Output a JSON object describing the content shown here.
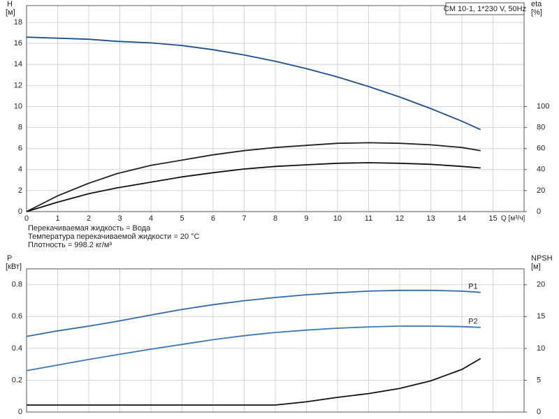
{
  "chart_data": [
    {
      "type": "line",
      "title": "CM 10-1, 1*230 V, 50Hz",
      "y_label": "H",
      "y_unit": "[м]",
      "y2_label": "eta",
      "y2_unit": "[%]",
      "x_label": "Q [м³/ч]",
      "x": [
        0,
        1,
        2,
        2.9,
        4,
        5,
        6,
        7,
        8,
        9,
        10,
        11,
        12,
        13,
        14,
        14.6
      ],
      "xlim": [
        0,
        16
      ],
      "xticks": [
        0,
        1,
        2,
        3,
        4,
        5,
        6,
        7,
        8,
        9,
        10,
        11,
        12,
        13,
        14,
        15
      ],
      "ylim": [
        0,
        19.6
      ],
      "yticks": [
        0,
        2,
        4,
        6,
        8,
        10,
        12,
        14,
        16,
        18
      ],
      "y2lim": [
        0,
        196
      ],
      "y2ticks": [
        0,
        20,
        40,
        60,
        80,
        100
      ],
      "grid": true,
      "series": [
        {
          "color": "#1f4e8c",
          "values": [
            16.6,
            16.5,
            16.4,
            16.2,
            16.05,
            15.8,
            15.4,
            14.9,
            14.3,
            13.6,
            12.8,
            11.9,
            10.9,
            9.8,
            8.6,
            7.8
          ]
        },
        {
          "color": "#222222",
          "axis": "y2",
          "values": [
            0,
            15,
            27,
            36,
            44,
            49,
            54,
            58,
            61,
            63,
            65,
            65.5,
            65,
            63.5,
            61,
            58
          ]
        },
        {
          "color": "#111111",
          "axis": "y2",
          "values": [
            0,
            9,
            17,
            22.5,
            28,
            33,
            37,
            40.5,
            43,
            44.5,
            46,
            46.5,
            46,
            45,
            43,
            41.5
          ]
        }
      ],
      "notes": [
        "Перекачиваемая жидкость = Вода",
        "Температура перекачиваемой жидкости = 20 °C",
        "Плотность = 998.2 кг/м³"
      ]
    },
    {
      "type": "line",
      "y_label": "P",
      "y_unit": "[кВт]",
      "y2_label": "NPSH",
      "y2_unit": "[м]",
      "x": [
        0,
        1,
        2,
        2.9,
        4,
        5,
        6,
        7,
        8,
        9,
        10,
        11,
        12,
        13,
        14,
        14.6
      ],
      "xlim": [
        0,
        16
      ],
      "xticks": [
        0,
        1,
        2,
        3,
        4,
        5,
        6,
        7,
        8,
        9,
        10,
        11,
        12,
        13,
        14,
        15
      ],
      "ylim": [
        0,
        0.9
      ],
      "yticks": [
        0,
        0.2,
        0.4,
        0.6,
        0.8
      ],
      "y2lim": [
        0,
        22.5
      ],
      "y2ticks": [
        0,
        5,
        10,
        15,
        20
      ],
      "grid": true,
      "series": [
        {
          "name": "P1",
          "color": "#2e6aa8",
          "values": [
            0.475,
            0.51,
            0.54,
            0.57,
            0.61,
            0.645,
            0.675,
            0.7,
            0.72,
            0.737,
            0.75,
            0.76,
            0.765,
            0.765,
            0.76,
            0.752
          ]
        },
        {
          "name": "P2",
          "color": "#3a78b5",
          "values": [
            0.26,
            0.295,
            0.33,
            0.36,
            0.395,
            0.425,
            0.455,
            0.48,
            0.5,
            0.515,
            0.527,
            0.535,
            0.54,
            0.54,
            0.537,
            0.532
          ]
        },
        {
          "color": "#111111",
          "axis": "y2",
          "values": [
            1.1,
            1.1,
            1.1,
            1.1,
            1.1,
            1.1,
            1.1,
            1.1,
            1.1,
            1.6,
            2.3,
            2.9,
            3.7,
            4.9,
            6.7,
            8.4
          ]
        }
      ]
    }
  ]
}
